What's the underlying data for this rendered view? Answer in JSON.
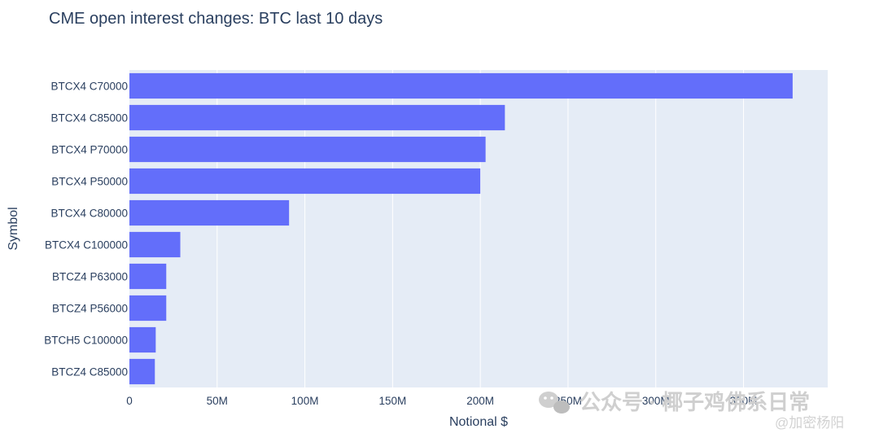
{
  "chart_data": {
    "type": "bar",
    "orientation": "horizontal",
    "title": "CME open interest changes: BTC last 10 days",
    "xlabel": "Notional $",
    "ylabel": "Symbol",
    "categories": [
      "BTCX4 C70000",
      "BTCX4 C85000",
      "BTCX4 P70000",
      "BTCX4 P50000",
      "BTCX4 C80000",
      "BTCX4 C100000",
      "BTCZ4 P63000",
      "BTCZ4 P56000",
      "BTCH5 C100000",
      "BTCZ4 C85000"
    ],
    "values": [
      378000000,
      214000000,
      203000000,
      200000000,
      91000000,
      29000000,
      21000000,
      21000000,
      15000000,
      14500000
    ],
    "xlim": [
      0,
      398000000
    ],
    "xticks": [
      0,
      50000000,
      100000000,
      150000000,
      200000000,
      250000000,
      300000000,
      350000000
    ],
    "xtick_labels": [
      "0",
      "50M",
      "100M",
      "150M",
      "200M",
      "250M",
      "300M",
      "350M"
    ],
    "grid": true,
    "colors": {
      "bar": "#636efa",
      "plot_background": "#e5ecf6",
      "gridline": "#ffffff",
      "text": "#2a3f5f"
    }
  },
  "watermark": {
    "main": "公众号 · 椰子鸡佛系日常",
    "sub": "@加密杨阳"
  }
}
